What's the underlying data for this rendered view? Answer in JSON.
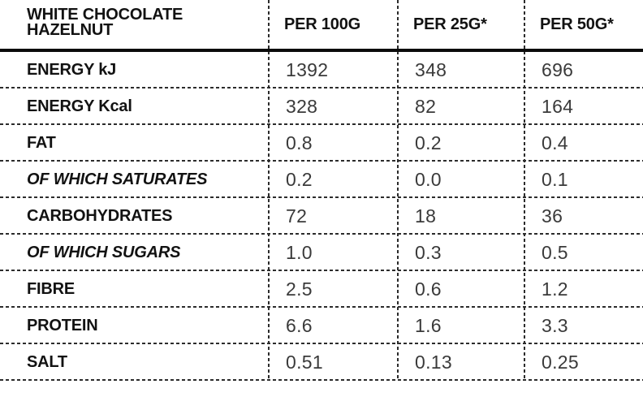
{
  "table": {
    "title_line1": "WHITE CHOCOLATE",
    "title_line2": "HAZELNUT",
    "columns": [
      "PER 100G",
      "PER 25G*",
      "PER 50G*"
    ],
    "rows": [
      {
        "label": "ENERGY kJ",
        "style": "bold",
        "values": [
          "1392",
          "348",
          "696"
        ]
      },
      {
        "label": "ENERGY Kcal",
        "style": "bold",
        "values": [
          "328",
          "82",
          "164"
        ]
      },
      {
        "label": "FAT",
        "style": "bold",
        "values": [
          "0.8",
          "0.2",
          "0.4"
        ]
      },
      {
        "label": "OF WHICH SATURATES",
        "style": "bold-italic",
        "values": [
          "0.2",
          "0.0",
          "0.1"
        ]
      },
      {
        "label": "CARBOHYDRATES",
        "style": "bold",
        "values": [
          "72",
          "18",
          "36"
        ]
      },
      {
        "label": "OF WHICH SUGARS",
        "style": "bold-italic",
        "values": [
          "1.0",
          "0.3",
          "0.5"
        ]
      },
      {
        "label": "FIBRE",
        "style": "bold",
        "values": [
          "2.5",
          "0.6",
          "1.2"
        ]
      },
      {
        "label": "PROTEIN",
        "style": "bold",
        "values": [
          "6.6",
          "1.6",
          "3.3"
        ]
      },
      {
        "label": "SALT",
        "style": "bold",
        "values": [
          "0.51",
          "0.13",
          "0.25"
        ]
      }
    ],
    "colors": {
      "label_text": "#121212",
      "value_text": "#3a3a3a",
      "rule": "#2c2c2c",
      "header_rule": "#0b0b0b",
      "background": "#ffffff"
    }
  },
  "chart_data": {
    "type": "table",
    "title": "WHITE CHOCOLATE HAZELNUT",
    "categories": [
      "PER 100G",
      "PER 25G*",
      "PER 50G*"
    ],
    "series": [
      {
        "name": "ENERGY kJ",
        "values": [
          1392,
          348,
          696
        ]
      },
      {
        "name": "ENERGY Kcal",
        "values": [
          328,
          82,
          164
        ]
      },
      {
        "name": "FAT",
        "values": [
          0.8,
          0.2,
          0.4
        ]
      },
      {
        "name": "OF WHICH SATURATES",
        "values": [
          0.2,
          0.0,
          0.1
        ]
      },
      {
        "name": "CARBOHYDRATES",
        "values": [
          72,
          18,
          36
        ]
      },
      {
        "name": "OF WHICH SUGARS",
        "values": [
          1.0,
          0.3,
          0.5
        ]
      },
      {
        "name": "FIBRE",
        "values": [
          2.5,
          0.6,
          1.2
        ]
      },
      {
        "name": "PROTEIN",
        "values": [
          6.6,
          1.6,
          3.3
        ]
      },
      {
        "name": "SALT",
        "values": [
          0.51,
          0.13,
          0.25
        ]
      }
    ]
  }
}
